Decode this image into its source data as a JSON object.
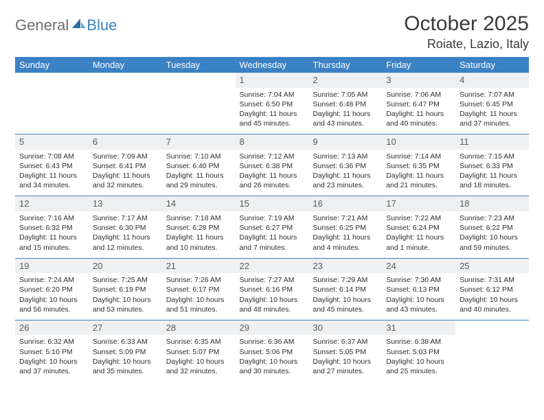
{
  "logo": {
    "part1": "General",
    "part2": "Blue"
  },
  "header": {
    "title": "October 2025",
    "location": "Roiate, Lazio, Italy"
  },
  "colors": {
    "header_bg": "#3b82c4",
    "header_text": "#ffffff",
    "row_border": "#3b82c4",
    "daynum_bg": "#eef0f1",
    "logo_gray": "#6e6e6e",
    "logo_blue": "#3b82c4",
    "body_text": "#2e2e2e"
  },
  "weekdays": [
    "Sunday",
    "Monday",
    "Tuesday",
    "Wednesday",
    "Thursday",
    "Friday",
    "Saturday"
  ],
  "weeks": [
    [
      null,
      null,
      null,
      {
        "n": "1",
        "sunrise": "7:04 AM",
        "sunset": "6:50 PM",
        "daylight": "11 hours and 45 minutes."
      },
      {
        "n": "2",
        "sunrise": "7:05 AM",
        "sunset": "6:48 PM",
        "daylight": "11 hours and 43 minutes."
      },
      {
        "n": "3",
        "sunrise": "7:06 AM",
        "sunset": "6:47 PM",
        "daylight": "11 hours and 40 minutes."
      },
      {
        "n": "4",
        "sunrise": "7:07 AM",
        "sunset": "6:45 PM",
        "daylight": "11 hours and 37 minutes."
      }
    ],
    [
      {
        "n": "5",
        "sunrise": "7:08 AM",
        "sunset": "6:43 PM",
        "daylight": "11 hours and 34 minutes."
      },
      {
        "n": "6",
        "sunrise": "7:09 AM",
        "sunset": "6:41 PM",
        "daylight": "11 hours and 32 minutes."
      },
      {
        "n": "7",
        "sunrise": "7:10 AM",
        "sunset": "6:40 PM",
        "daylight": "11 hours and 29 minutes."
      },
      {
        "n": "8",
        "sunrise": "7:12 AM",
        "sunset": "6:38 PM",
        "daylight": "11 hours and 26 minutes."
      },
      {
        "n": "9",
        "sunrise": "7:13 AM",
        "sunset": "6:36 PM",
        "daylight": "11 hours and 23 minutes."
      },
      {
        "n": "10",
        "sunrise": "7:14 AM",
        "sunset": "6:35 PM",
        "daylight": "11 hours and 21 minutes."
      },
      {
        "n": "11",
        "sunrise": "7:15 AM",
        "sunset": "6:33 PM",
        "daylight": "11 hours and 18 minutes."
      }
    ],
    [
      {
        "n": "12",
        "sunrise": "7:16 AM",
        "sunset": "6:32 PM",
        "daylight": "11 hours and 15 minutes."
      },
      {
        "n": "13",
        "sunrise": "7:17 AM",
        "sunset": "6:30 PM",
        "daylight": "11 hours and 12 minutes."
      },
      {
        "n": "14",
        "sunrise": "7:18 AM",
        "sunset": "6:28 PM",
        "daylight": "11 hours and 10 minutes."
      },
      {
        "n": "15",
        "sunrise": "7:19 AM",
        "sunset": "6:27 PM",
        "daylight": "11 hours and 7 minutes."
      },
      {
        "n": "16",
        "sunrise": "7:21 AM",
        "sunset": "6:25 PM",
        "daylight": "11 hours and 4 minutes."
      },
      {
        "n": "17",
        "sunrise": "7:22 AM",
        "sunset": "6:24 PM",
        "daylight": "11 hours and 1 minute."
      },
      {
        "n": "18",
        "sunrise": "7:23 AM",
        "sunset": "6:22 PM",
        "daylight": "10 hours and 59 minutes."
      }
    ],
    [
      {
        "n": "19",
        "sunrise": "7:24 AM",
        "sunset": "6:20 PM",
        "daylight": "10 hours and 56 minutes."
      },
      {
        "n": "20",
        "sunrise": "7:25 AM",
        "sunset": "6:19 PM",
        "daylight": "10 hours and 53 minutes."
      },
      {
        "n": "21",
        "sunrise": "7:26 AM",
        "sunset": "6:17 PM",
        "daylight": "10 hours and 51 minutes."
      },
      {
        "n": "22",
        "sunrise": "7:27 AM",
        "sunset": "6:16 PM",
        "daylight": "10 hours and 48 minutes."
      },
      {
        "n": "23",
        "sunrise": "7:29 AM",
        "sunset": "6:14 PM",
        "daylight": "10 hours and 45 minutes."
      },
      {
        "n": "24",
        "sunrise": "7:30 AM",
        "sunset": "6:13 PM",
        "daylight": "10 hours and 43 minutes."
      },
      {
        "n": "25",
        "sunrise": "7:31 AM",
        "sunset": "6:12 PM",
        "daylight": "10 hours and 40 minutes."
      }
    ],
    [
      {
        "n": "26",
        "sunrise": "6:32 AM",
        "sunset": "5:10 PM",
        "daylight": "10 hours and 37 minutes."
      },
      {
        "n": "27",
        "sunrise": "6:33 AM",
        "sunset": "5:09 PM",
        "daylight": "10 hours and 35 minutes."
      },
      {
        "n": "28",
        "sunrise": "6:35 AM",
        "sunset": "5:07 PM",
        "daylight": "10 hours and 32 minutes."
      },
      {
        "n": "29",
        "sunrise": "6:36 AM",
        "sunset": "5:06 PM",
        "daylight": "10 hours and 30 minutes."
      },
      {
        "n": "30",
        "sunrise": "6:37 AM",
        "sunset": "5:05 PM",
        "daylight": "10 hours and 27 minutes."
      },
      {
        "n": "31",
        "sunrise": "6:38 AM",
        "sunset": "5:03 PM",
        "daylight": "10 hours and 25 minutes."
      },
      null
    ]
  ],
  "labels": {
    "sunrise": "Sunrise:",
    "sunset": "Sunset:",
    "daylight": "Daylight:"
  }
}
